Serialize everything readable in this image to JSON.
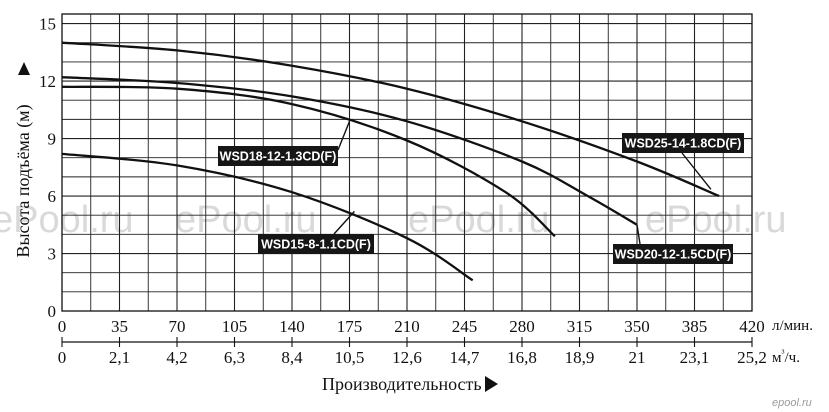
{
  "chart_data": {
    "type": "line",
    "ylabel": "Высота подъёма (м)",
    "xlabel": "Производительность",
    "x_unit_top": "л/мин.",
    "x_unit_bottom": "м³/ч.",
    "x_ticks_top": [
      "0",
      "35",
      "70",
      "105",
      "140",
      "175",
      "210",
      "245",
      "280",
      "315",
      "350",
      "385",
      "420"
    ],
    "x_ticks_bottom": [
      "0",
      "2,1",
      "4,2",
      "6,3",
      "8,4",
      "10,5",
      "12,6",
      "14,7",
      "16,8",
      "18,9",
      "21",
      "23,1",
      "25,2"
    ],
    "y_ticks": [
      "0",
      "3",
      "6",
      "9",
      "12",
      "15"
    ],
    "xlim": [
      0,
      420
    ],
    "ylim": [
      0,
      15.5
    ],
    "grid": true,
    "series": [
      {
        "name": "WSD25-14-1.8CD(F)",
        "x": [
          0,
          70,
          140,
          210,
          280,
          350,
          400
        ],
        "y": [
          14.0,
          13.6,
          12.8,
          11.6,
          9.9,
          7.8,
          6.0
        ]
      },
      {
        "name": "WSD20-12-1.5CD(F)",
        "x": [
          0,
          70,
          140,
          210,
          280,
          320,
          350
        ],
        "y": [
          12.2,
          11.9,
          11.2,
          9.9,
          7.8,
          6.0,
          4.5
        ]
      },
      {
        "name": "WSD18-12-1.3CD(F)",
        "x": [
          0,
          70,
          140,
          210,
          270,
          300
        ],
        "y": [
          11.7,
          11.6,
          10.8,
          8.9,
          6.2,
          3.9
        ]
      },
      {
        "name": "WSD15-8-1.1CD(F)",
        "x": [
          0,
          70,
          140,
          210,
          250
        ],
        "y": [
          8.2,
          7.6,
          6.2,
          3.8,
          1.6
        ]
      }
    ]
  },
  "watermarks": [
    "ePool.ru",
    "ePool.ru",
    "ePool.ru",
    "ePool.ru"
  ],
  "brand": "epool.ru"
}
